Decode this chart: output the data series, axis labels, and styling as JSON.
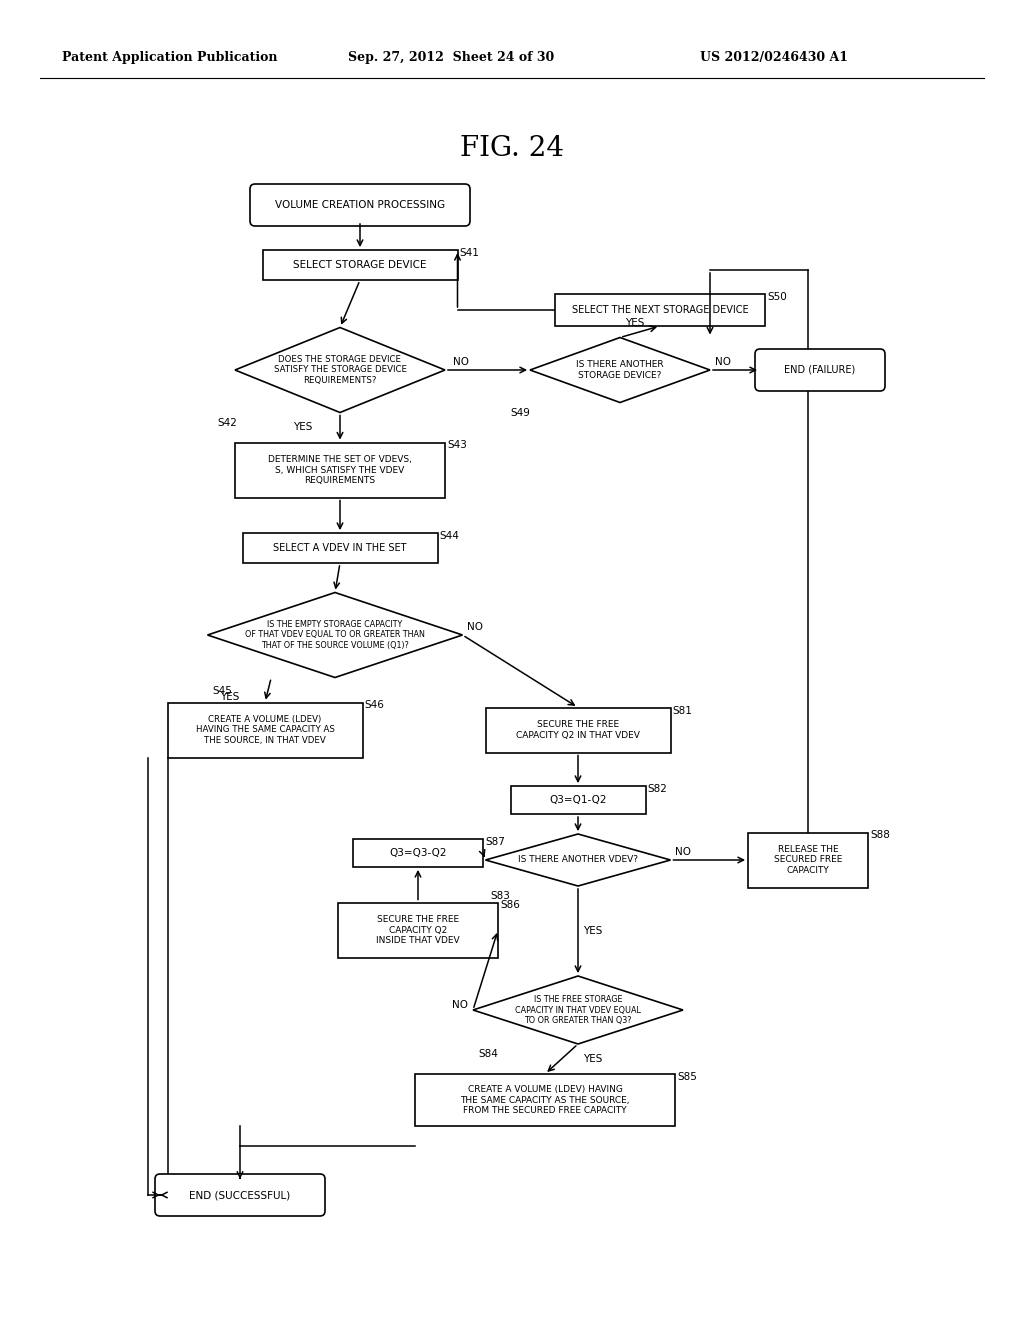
{
  "title": "FIG. 24",
  "header_left": "Patent Application Publication",
  "header_center": "Sep. 27, 2012  Sheet 24 of 30",
  "header_right": "US 2012/0246430 A1",
  "bg_color": "#ffffff"
}
